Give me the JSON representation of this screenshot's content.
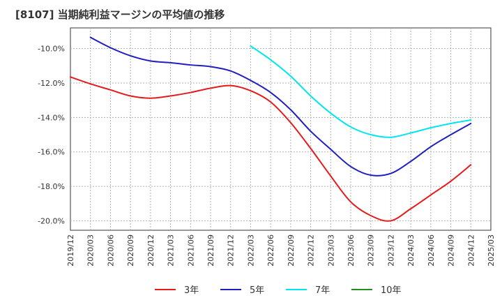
{
  "title": "[8107]  当期純利益マージンの平均値の推移",
  "chart_data": {
    "type": "line",
    "title": "[8107]  当期純利益マージンの平均値の推移",
    "xlabel": "",
    "ylabel": "",
    "x_ticks": [
      "2019/12",
      "2020/03",
      "2020/06",
      "2020/09",
      "2020/12",
      "2021/03",
      "2021/06",
      "2021/09",
      "2021/12",
      "2022/03",
      "2022/06",
      "2022/09",
      "2022/12",
      "2023/03",
      "2023/06",
      "2023/09",
      "2023/12",
      "2024/03",
      "2024/06",
      "2024/09",
      "2024/12",
      "2025/03"
    ],
    "y_ticks": [
      -10,
      -12,
      -14,
      -16,
      -18,
      -20
    ],
    "y_tick_labels": [
      "-10.0%",
      "-12.0%",
      "-14.0%",
      "-16.0%",
      "-18.0%",
      "-20.0%"
    ],
    "ylim": [
      -20.55,
      -8.8
    ],
    "grid": true,
    "legend_position": "bottom",
    "series": [
      {
        "name": "3年",
        "color": "#e41a1c",
        "x": [
          "2019/12",
          "2020/03",
          "2020/06",
          "2020/09",
          "2020/12",
          "2021/03",
          "2021/06",
          "2021/09",
          "2021/12",
          "2022/03",
          "2022/06",
          "2022/09",
          "2022/12",
          "2023/03",
          "2023/06",
          "2023/09",
          "2023/12",
          "2024/03",
          "2024/06",
          "2024/09",
          "2024/12"
        ],
        "values": [
          -11.65,
          -12.05,
          -12.4,
          -12.75,
          -12.88,
          -12.75,
          -12.55,
          -12.3,
          -12.15,
          -12.45,
          -13.1,
          -14.3,
          -15.8,
          -17.4,
          -18.9,
          -19.7,
          -20.0,
          -19.3,
          -18.5,
          -17.7,
          -16.75
        ]
      },
      {
        "name": "5年",
        "color": "#1f1fbf",
        "x": [
          "2020/03",
          "2020/06",
          "2020/09",
          "2020/12",
          "2021/03",
          "2021/06",
          "2021/09",
          "2021/12",
          "2022/03",
          "2022/06",
          "2022/09",
          "2022/12",
          "2023/03",
          "2023/06",
          "2023/09",
          "2023/12",
          "2024/03",
          "2024/06",
          "2024/09",
          "2024/12"
        ],
        "values": [
          -9.35,
          -9.95,
          -10.42,
          -10.72,
          -10.82,
          -10.95,
          -11.05,
          -11.3,
          -11.85,
          -12.55,
          -13.55,
          -14.8,
          -15.85,
          -16.85,
          -17.35,
          -17.25,
          -16.55,
          -15.7,
          -15.0,
          -14.35
        ]
      },
      {
        "name": "7年",
        "color": "#00e5ee",
        "x": [
          "2022/03",
          "2022/06",
          "2022/09",
          "2022/12",
          "2023/03",
          "2023/06",
          "2023/09",
          "2023/12",
          "2024/03",
          "2024/06",
          "2024/09",
          "2024/12"
        ],
        "values": [
          -9.85,
          -10.65,
          -11.6,
          -12.75,
          -13.75,
          -14.55,
          -15.0,
          -15.15,
          -14.9,
          -14.6,
          -14.35,
          -14.15
        ]
      },
      {
        "name": "10年",
        "color": "#228b22",
        "x": [],
        "values": []
      }
    ]
  }
}
